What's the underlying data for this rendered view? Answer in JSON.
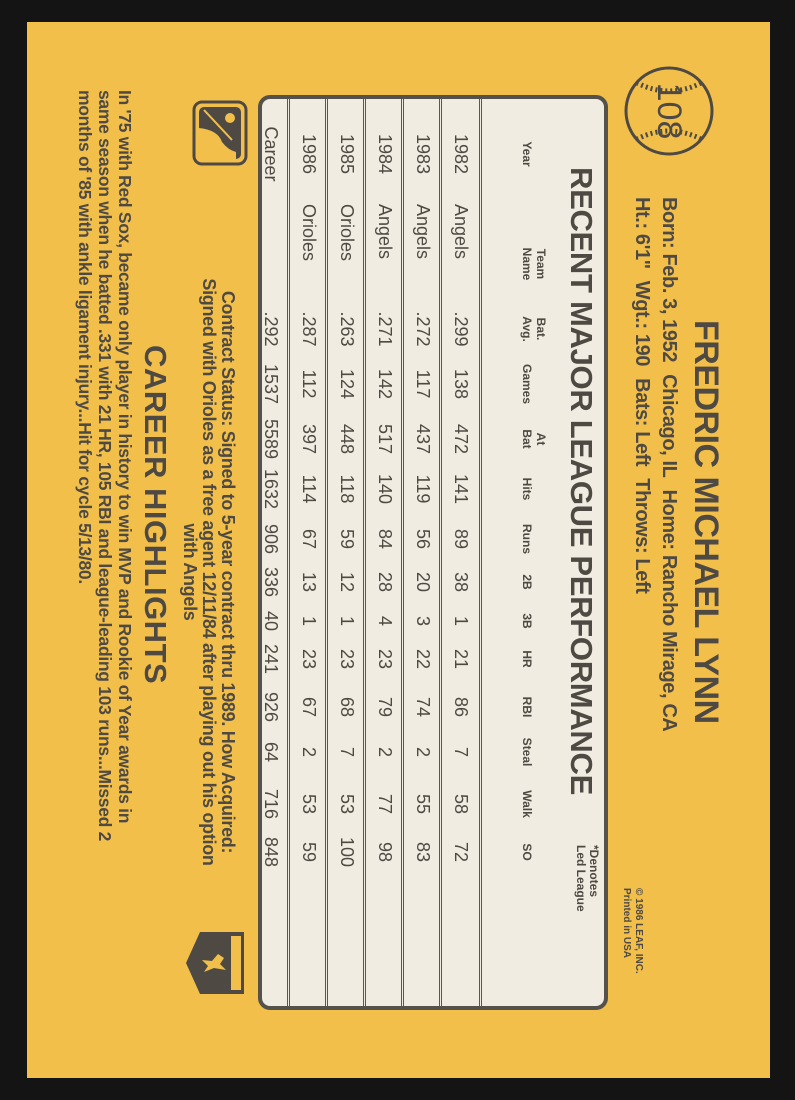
{
  "card_number": "108",
  "player": {
    "name": "FREDRIC MICHAEL LYNN",
    "born": "Born: Feb. 3, 1952",
    "birthplace": "Chicago, IL",
    "home": "Home: Rancho Mirage, CA",
    "height": "Ht.: 6'1\"",
    "weight": "Wgt.: 190",
    "bats": "Bats: Left",
    "throws": "Throws: Left"
  },
  "copyright": {
    "line1": "© 1986 LEAF, INC.",
    "line2": "Printed in USA"
  },
  "stats": {
    "title": "RECENT MAJOR LEAGUE PERFORMANCE",
    "note_line1": "*Denotes",
    "note_line2": "Led League",
    "headers": [
      "Year",
      "Team\nName",
      "Bat.\nAvg.",
      "Games",
      "At\nBat",
      "Hits",
      "Runs",
      "2B",
      "3B",
      "HR",
      "RBI",
      "Steal",
      "Walk",
      "SO"
    ],
    "rows": [
      [
        "1982",
        "Angels",
        ".299",
        "138",
        "472",
        "141",
        "89",
        "38",
        "1",
        "21",
        "86",
        "7",
        "58",
        "72"
      ],
      [
        "1983",
        "Angels",
        ".272",
        "117",
        "437",
        "119",
        "56",
        "20",
        "3",
        "22",
        "74",
        "2",
        "55",
        "83"
      ],
      [
        "1984",
        "Angels",
        ".271",
        "142",
        "517",
        "140",
        "84",
        "28",
        "4",
        "23",
        "79",
        "2",
        "77",
        "98"
      ],
      [
        "1985",
        "Orioles",
        ".263",
        "124",
        "448",
        "118",
        "59",
        "12",
        "1",
        "23",
        "68",
        "7",
        "53",
        "100"
      ],
      [
        "1986",
        "Orioles",
        ".287",
        "112",
        "397",
        "114",
        "67",
        "13",
        "1",
        "23",
        "67",
        "2",
        "53",
        "59"
      ],
      [
        "Career",
        "",
        ".292",
        "1537",
        "5589",
        "1632",
        "906",
        "336",
        "40",
        "241",
        "926",
        "64",
        "716",
        "848"
      ]
    ]
  },
  "contract": {
    "line1": "Contract Status: Signed to 5-year contract thru 1989. How Acquired:",
    "line2": "Signed with Orioles as a free agent 12/11/84 after playing out his option",
    "line3": "with Angels"
  },
  "highlights": {
    "title": "CAREER HIGHLIGHTS",
    "lines": [
      "In '75 with Red Sox, became only player in history to win MVP and Rookie of Year awards in",
      "same season when he batted .331 with 21 HR, 105 RBI and league-leading 103 runs...Missed 2",
      "months of '85 with ankle ligament injury...Hit for cycle 5/13/80."
    ]
  },
  "colors": {
    "card": "#f2bf4b",
    "ink": "#4e4a43",
    "table_bg": "#f0ece1",
    "border": "#141414"
  },
  "logos": {
    "mlb": "MLB silhouette logo",
    "players_association": "MLBPA shield logo"
  }
}
